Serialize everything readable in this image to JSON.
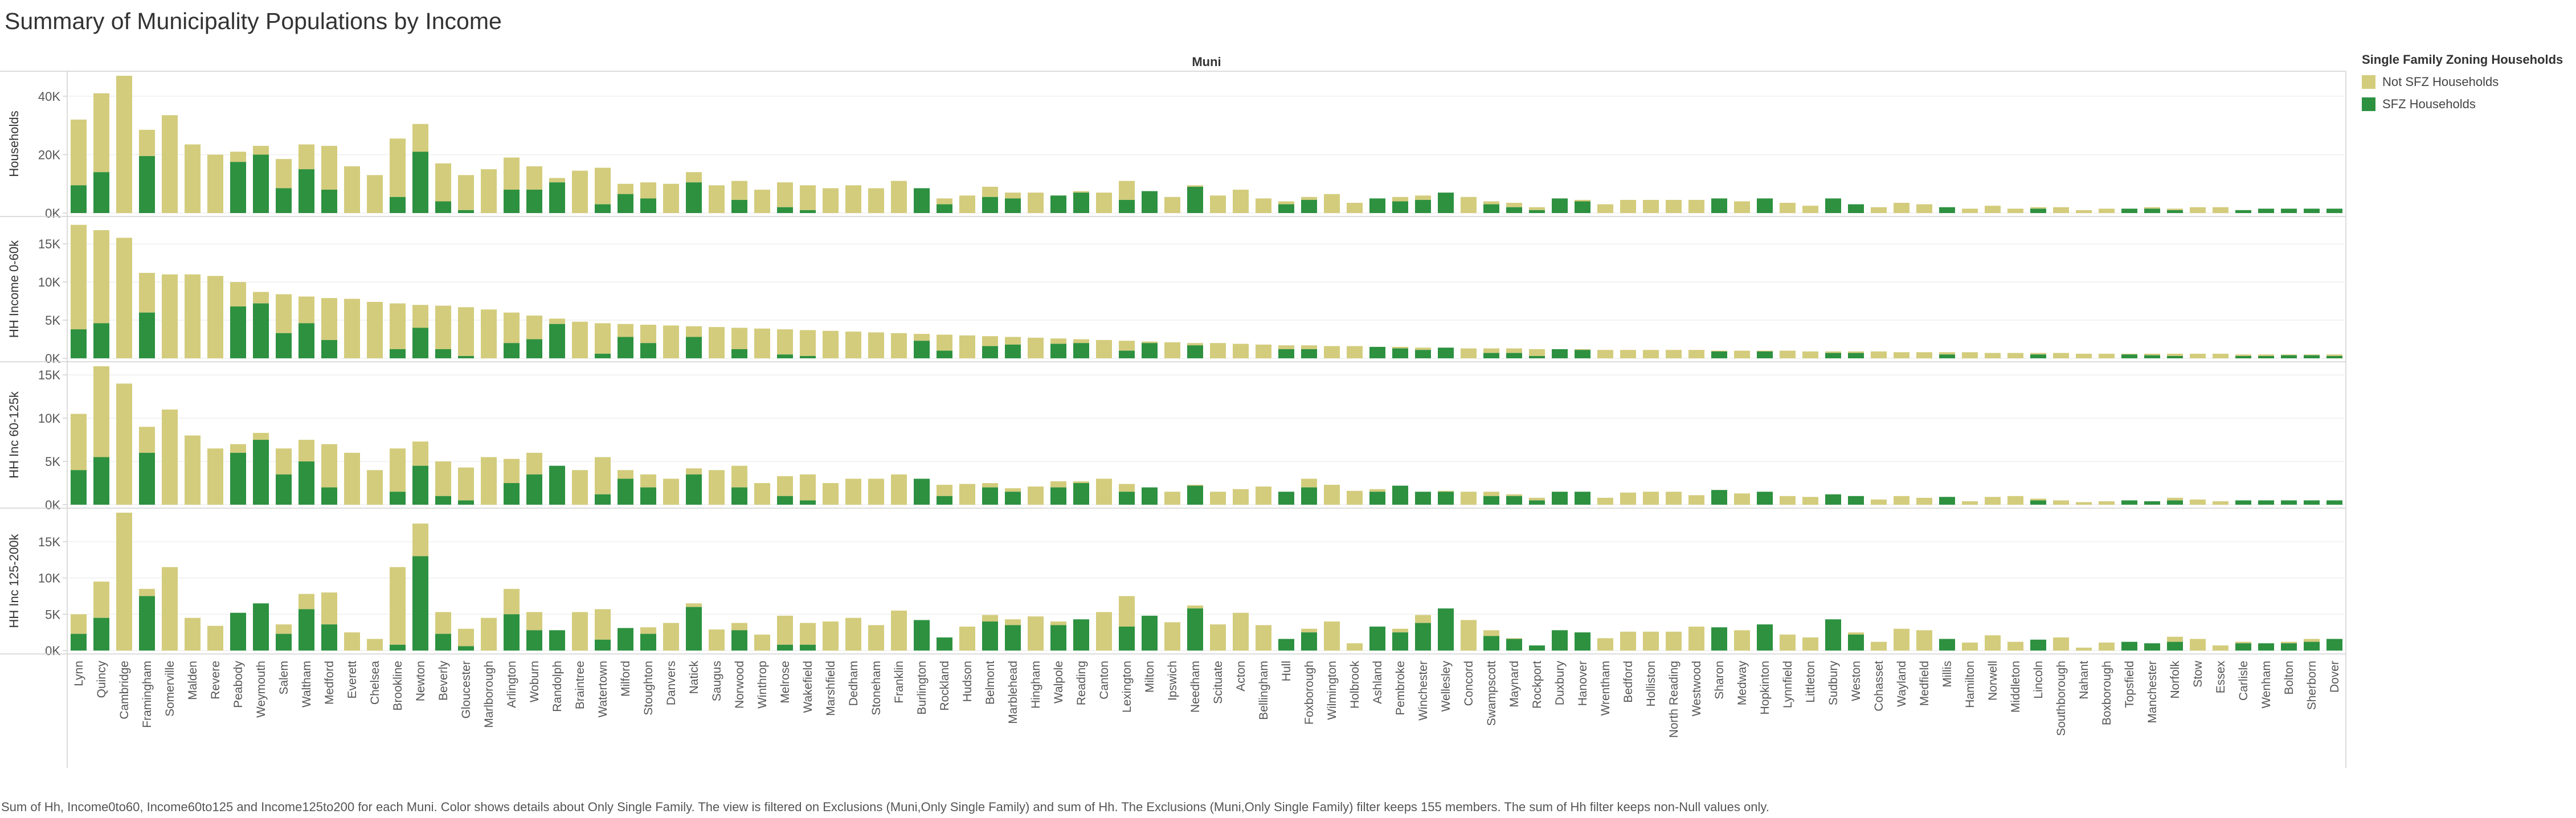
{
  "title": "Summary of Municipality Populations by Income",
  "footnote": "Sum of Hh, Income0to60, Income60to125 and Income125to200 for each Muni.  Color shows details about Only Single Family. The view is filtered on Exclusions (Muni,Only Single Family) and sum of Hh. The Exclusions (Muni,Only Single Family) filter keeps 155 members. The sum of Hh filter keeps non-Null values only.",
  "colors": {
    "not_sfz": "#d3cc7c",
    "sfz": "#2d9140",
    "grid": "#efefef",
    "axis": "#d0d0d0",
    "text": "#555555"
  },
  "legend": {
    "title": "Single Family Zoning Households",
    "items": [
      {
        "label": "Not SFZ Households",
        "color": "#d3cc7c"
      },
      {
        "label": "SFZ Households",
        "color": "#2d9140"
      }
    ]
  },
  "chart_data": {
    "type": "bar",
    "stacked": true,
    "column_header": "Muni",
    "categories": [
      "Lynn",
      "Quincy",
      "Cambridge",
      "Framingham",
      "Somerville",
      "Malden",
      "Revere",
      "Peabody",
      "Weymouth",
      "Salem",
      "Waltham",
      "Medford",
      "Everett",
      "Chelsea",
      "Brookline",
      "Newton",
      "Beverly",
      "Gloucester",
      "Marlborough",
      "Arlington",
      "Woburn",
      "Randolph",
      "Braintree",
      "Watertown",
      "Milford",
      "Stoughton",
      "Danvers",
      "Natick",
      "Saugus",
      "Norwood",
      "Winthrop",
      "Melrose",
      "Wakefield",
      "Marshfield",
      "Dedham",
      "Stoneham",
      "Franklin",
      "Burlington",
      "Rockland",
      "Hudson",
      "Belmont",
      "Marblehead",
      "Hingham",
      "Walpole",
      "Reading",
      "Canton",
      "Lexington",
      "Milton",
      "Ipswich",
      "Needham",
      "Scituate",
      "Acton",
      "Bellingham",
      "Hull",
      "Foxborough",
      "Wilmington",
      "Holbrook",
      "Ashland",
      "Pembroke",
      "Winchester",
      "Wellesley",
      "Concord",
      "Swampscott",
      "Maynard",
      "Rockport",
      "Duxbury",
      "Hanover",
      "Wrentham",
      "Bedford",
      "Holliston",
      "North Reading",
      "Westwood",
      "Sharon",
      "Medway",
      "Hopkinton",
      "Lynnfield",
      "Littleton",
      "Sudbury",
      "Weston",
      "Cohasset",
      "Wayland",
      "Medfield",
      "Millis",
      "Hamilton",
      "Norwell",
      "Middleton",
      "Lincoln",
      "Southborough",
      "Nahant",
      "Boxborough",
      "Topsfield",
      "Manchester",
      "Norfolk",
      "Stow",
      "Essex",
      "Carlisle",
      "Wenham",
      "Bolton",
      "Sherborn",
      "Dover"
    ],
    "series": [
      {
        "name": "Not SFZ Households",
        "color": "#d3cc7c"
      },
      {
        "name": "SFZ Households",
        "color": "#2d9140"
      }
    ],
    "panels": [
      {
        "ylabel": "Households",
        "ymax": 47000,
        "ticks": [
          0,
          20000,
          40000
        ],
        "tick_labels": [
          "0K",
          "20K",
          "40K"
        ],
        "sfz": [
          9500,
          14000,
          0,
          19500,
          0,
          0,
          0,
          17500,
          20000,
          8500,
          15000,
          8000,
          0,
          0,
          5500,
          21000,
          4000,
          1000,
          0,
          8000,
          8000,
          10500,
          0,
          3000,
          6500,
          5000,
          0,
          10500,
          0,
          4500,
          0,
          2000,
          1000,
          0,
          0,
          0,
          0,
          8500,
          3000,
          0,
          5500,
          5000,
          0,
          6000,
          7000,
          0,
          4500,
          7500,
          0,
          9000,
          0,
          0,
          0,
          3000,
          4500,
          0,
          0,
          5000,
          4000,
          4500,
          7000,
          0,
          3000,
          2000,
          1000,
          5000,
          4000,
          0,
          0,
          0,
          0,
          0,
          5000,
          0,
          5000,
          0,
          0,
          5000,
          3000,
          0,
          0,
          0,
          2000,
          0,
          0,
          0,
          1500,
          0,
          0,
          0,
          1500,
          1500,
          1000,
          0,
          0,
          1000,
          1500,
          1500,
          1500,
          1500
        ],
        "total": [
          32000,
          41000,
          47000,
          28500,
          33500,
          23500,
          20000,
          21000,
          23000,
          18500,
          23500,
          23000,
          16000,
          13000,
          25500,
          30500,
          17000,
          13000,
          15000,
          19000,
          16000,
          12000,
          14500,
          15500,
          10000,
          10500,
          10000,
          14000,
          9500,
          11000,
          8000,
          10500,
          9500,
          8500,
          9500,
          8500,
          11000,
          8500,
          5000,
          6000,
          9000,
          7000,
          7000,
          6000,
          7500,
          7000,
          11000,
          7500,
          5500,
          9500,
          6000,
          8000,
          5000,
          4000,
          5500,
          6500,
          3500,
          5000,
          5500,
          6000,
          7000,
          5500,
          4000,
          3500,
          2000,
          5000,
          4500,
          3000,
          4500,
          4500,
          4500,
          4500,
          5000,
          4000,
          4500,
          3500,
          2500,
          5000,
          3000,
          2000,
          3500,
          3000,
          2000,
          1500,
          2500,
          1500,
          2000,
          2000,
          1000,
          1500,
          1500,
          2000,
          1500,
          2000,
          2000,
          1000,
          1500,
          1500,
          1500,
          1500
        ]
      },
      {
        "ylabel": "HH Income 0-60k",
        "ymax": 18000,
        "ticks": [
          0,
          5000,
          10000,
          15000
        ],
        "tick_labels": [
          "0K",
          "5K",
          "10K",
          "15K"
        ],
        "sfz": [
          3800,
          4600,
          0,
          6000,
          0,
          0,
          0,
          6800,
          7200,
          3300,
          4600,
          2400,
          0,
          0,
          1200,
          4000,
          1200,
          300,
          0,
          2000,
          2500,
          4500,
          0,
          600,
          2800,
          2000,
          0,
          2800,
          0,
          1200,
          0,
          500,
          300,
          0,
          0,
          0,
          0,
          2300,
          1000,
          0,
          1600,
          1800,
          0,
          1900,
          2000,
          0,
          1000,
          2000,
          0,
          1700,
          0,
          0,
          0,
          1200,
          1200,
          0,
          0,
          1500,
          1300,
          1100,
          1400,
          0,
          700,
          700,
          300,
          1200,
          1100,
          0,
          0,
          0,
          0,
          0,
          900,
          0,
          900,
          0,
          0,
          700,
          700,
          0,
          0,
          0,
          500,
          0,
          0,
          0,
          500,
          0,
          0,
          0,
          500,
          400,
          300,
          0,
          0,
          300,
          300,
          400,
          400,
          300
        ],
        "total": [
          17500,
          16800,
          15800,
          11200,
          11000,
          11000,
          10800,
          10000,
          8700,
          8400,
          8100,
          7900,
          7800,
          7400,
          7200,
          7000,
          6900,
          6700,
          6400,
          6000,
          5600,
          5200,
          4800,
          4600,
          4500,
          4400,
          4300,
          4200,
          4100,
          4000,
          3900,
          3800,
          3700,
          3600,
          3500,
          3400,
          3300,
          3200,
          3100,
          3000,
          2900,
          2800,
          2700,
          2600,
          2500,
          2400,
          2300,
          2200,
          2100,
          2000,
          2000,
          1900,
          1800,
          1700,
          1700,
          1600,
          1600,
          1500,
          1500,
          1400,
          1400,
          1300,
          1300,
          1300,
          1200,
          1200,
          1200,
          1100,
          1100,
          1100,
          1100,
          1100,
          1000,
          1000,
          1000,
          1000,
          900,
          900,
          900,
          900,
          800,
          800,
          800,
          800,
          700,
          700,
          700,
          700,
          600,
          600,
          600,
          600,
          600,
          600,
          600,
          500,
          500,
          500,
          500,
          500
        ]
      },
      {
        "ylabel": "HH Inc 60-125k",
        "ymax": 16000,
        "ticks": [
          0,
          5000,
          10000,
          15000
        ],
        "tick_labels": [
          "0K",
          "5K",
          "10K",
          "15K"
        ],
        "sfz": [
          4000,
          5500,
          0,
          6000,
          0,
          0,
          0,
          6000,
          7500,
          3500,
          5000,
          2000,
          0,
          0,
          1500,
          4500,
          1000,
          500,
          0,
          2500,
          3500,
          4500,
          0,
          1200,
          3000,
          2000,
          0,
          3500,
          0,
          2000,
          0,
          1000,
          500,
          0,
          0,
          0,
          0,
          3000,
          1000,
          0,
          2000,
          1500,
          0,
          2000,
          2500,
          0,
          1500,
          2000,
          0,
          2200,
          0,
          0,
          0,
          1500,
          2000,
          0,
          0,
          1500,
          2200,
          1500,
          1500,
          0,
          1000,
          1000,
          500,
          1500,
          1500,
          0,
          0,
          0,
          0,
          0,
          1700,
          0,
          1500,
          0,
          0,
          1200,
          1000,
          0,
          0,
          0,
          900,
          0,
          0,
          0,
          500,
          0,
          0,
          0,
          500,
          400,
          500,
          0,
          0,
          500,
          500,
          500,
          500,
          500
        ],
        "total": [
          10500,
          16000,
          14000,
          9000,
          11000,
          8000,
          6500,
          7000,
          8300,
          6500,
          7500,
          7000,
          6000,
          4000,
          6500,
          7300,
          5000,
          4300,
          5500,
          5300,
          6000,
          4500,
          4000,
          5500,
          4000,
          3500,
          3000,
          4200,
          4000,
          4500,
          2500,
          3300,
          3500,
          2500,
          3000,
          3000,
          3500,
          3000,
          2300,
          2400,
          2500,
          1900,
          2100,
          2700,
          2700,
          3000,
          2400,
          2000,
          1500,
          2300,
          1500,
          1800,
          2100,
          1500,
          3000,
          2300,
          1600,
          1800,
          2200,
          1500,
          1600,
          1500,
          1500,
          1200,
          800,
          1500,
          1400,
          800,
          1400,
          1500,
          1500,
          1100,
          1700,
          1300,
          1200,
          1000,
          900,
          1200,
          600,
          600,
          1000,
          800,
          900,
          400,
          900,
          1000,
          700,
          500,
          300,
          400,
          500,
          400,
          800,
          600,
          400,
          300,
          500,
          400,
          500,
          400
        ]
      },
      {
        "ylabel": "HH Inc 125-200k",
        "ymax": 19000,
        "ticks": [
          0,
          5000,
          10000,
          15000
        ],
        "tick_labels": [
          "0K",
          "5K",
          "10K",
          "15K"
        ],
        "sfz": [
          2300,
          4500,
          0,
          7500,
          0,
          0,
          0,
          5200,
          6500,
          2300,
          5700,
          3600,
          0,
          0,
          800,
          13000,
          2300,
          600,
          0,
          5000,
          2800,
          2800,
          0,
          1500,
          3100,
          2300,
          0,
          6000,
          0,
          2800,
          0,
          800,
          800,
          0,
          0,
          0,
          0,
          4200,
          1800,
          0,
          4000,
          3500,
          0,
          3500,
          4300,
          0,
          3300,
          4800,
          0,
          5800,
          0,
          0,
          0,
          1600,
          2500,
          0,
          0,
          3300,
          2500,
          3800,
          5800,
          0,
          2000,
          1600,
          700,
          2800,
          2500,
          0,
          0,
          0,
          0,
          0,
          3200,
          0,
          3600,
          0,
          0,
          4300,
          2200,
          0,
          0,
          0,
          1600,
          0,
          0,
          0,
          1500,
          0,
          0,
          0,
          1200,
          1000,
          1200,
          0,
          0,
          1000,
          1000,
          1000,
          1200,
          1600
        ],
        "total": [
          5000,
          9500,
          19000,
          8500,
          11500,
          4500,
          3400,
          5200,
          6500,
          3600,
          7800,
          8000,
          2500,
          1600,
          11500,
          17500,
          5300,
          3000,
          4500,
          8500,
          5300,
          2800,
          5300,
          5700,
          3100,
          3200,
          3800,
          6500,
          2900,
          3800,
          2200,
          4800,
          3800,
          4000,
          4500,
          3500,
          5500,
          4200,
          1800,
          3300,
          4900,
          4300,
          4700,
          4000,
          4300,
          5300,
          7500,
          4800,
          3900,
          6200,
          3600,
          5200,
          3500,
          1600,
          3000,
          4000,
          1000,
          3300,
          3000,
          4900,
          5800,
          4200,
          2800,
          1700,
          700,
          2800,
          2500,
          1700,
          2600,
          2600,
          2600,
          3300,
          3200,
          2800,
          3600,
          2200,
          1800,
          4300,
          2500,
          1200,
          3000,
          2800,
          1600,
          1100,
          2100,
          1200,
          1400,
          1800,
          400,
          1100,
          1200,
          1000,
          1900,
          1600,
          700,
          1200,
          1000,
          1200,
          1600,
          1600
        ]
      }
    ]
  }
}
